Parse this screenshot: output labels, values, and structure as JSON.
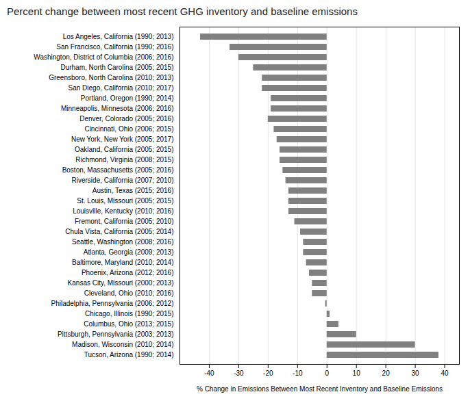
{
  "chart_data": {
    "type": "bar",
    "orientation": "horizontal",
    "title": "Percent change between most recent GHG inventory and baseline emissions",
    "xlabel": "% Change in Emissions Between Most Recent Inventory and Baseline Emissions",
    "categories": [
      "Los Angeles, California (1990; 2013)",
      "San Francisco, California (1990; 2016)",
      "Washington, District of Columbia (2006; 2016)",
      "Durham, North Carolina (2005; 2015)",
      "Greensboro, North Carolina (2010; 2013)",
      "San Diego, California (2010; 2017)",
      "Portland, Oregon (1990; 2014)",
      "Minneapolis, Minnesota (2006; 2016)",
      "Denver, Colorado (2005; 2016)",
      "Cincinnati, Ohio (2006; 2015)",
      "New York, New York (2005; 2017)",
      "Oakland, California (2005; 2015)",
      "Richmond, Virginia (2008; 2015)",
      "Boston, Massachusetts (2005; 2016)",
      "Riverside, California (2007; 2010)",
      "Austin, Texas (2015; 2016)",
      "St. Louis, Missouri (2005; 2015)",
      "Louisville, Kentucky (2010; 2016)",
      "Fremont, California (2005; 2010)",
      "Chula Vista, California (2005; 2014)",
      "Seattle, Washington (2008; 2016)",
      "Atlanta, Georgia (2009; 2013)",
      "Baltimore, Maryland (2010; 2014)",
      "Phoenix, Arizona (2012; 2016)",
      "Kansas City, Missouri (2000; 2013)",
      "Cleveland, Ohio (2010; 2016)",
      "Philadelphia, Pennsylvania (2006; 2012)",
      "Chicago, Illinois (1990; 2015)",
      "Columbus, Ohio (2013; 2015)",
      "Pittsburgh, Pennsylvania (2003; 2013)",
      "Madison, Wisconsin (2010; 2014)",
      "Tucson, Arizona (1990; 2014)"
    ],
    "values": [
      -43,
      -33,
      -30,
      -25,
      -22,
      -22,
      -19,
      -19,
      -20,
      -18,
      -17,
      -16,
      -16,
      -15,
      -14,
      -13,
      -13,
      -13,
      -11,
      -9,
      -8,
      -8,
      -7,
      -6,
      -5,
      -5,
      -0.5,
      1,
      4,
      10,
      30,
      38
    ],
    "color": "#808080",
    "xlim": [
      -50,
      45
    ],
    "xticks": [
      -40,
      -30,
      -20,
      -10,
      0,
      10,
      20,
      30,
      40
    ],
    "grid": true
  }
}
